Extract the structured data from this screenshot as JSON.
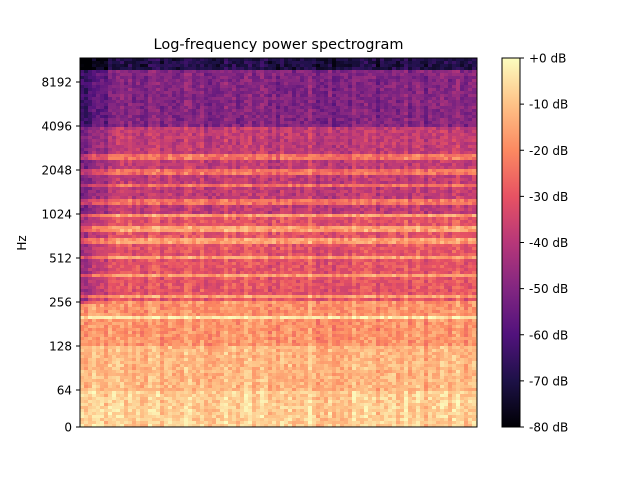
{
  "chart_data": {
    "type": "heatmap",
    "title": "Log-frequency power spectrogram",
    "xlabel": "",
    "ylabel": "Hz",
    "y_scale": "log2 (symlog near 0)",
    "y_ticks": [
      "0",
      "64",
      "128",
      "256",
      "512",
      "1024",
      "2048",
      "4096",
      "8192"
    ],
    "y_tick_values": [
      0,
      64,
      128,
      256,
      512,
      1024,
      2048,
      4096,
      8192
    ],
    "ylim": [
      0,
      11025
    ],
    "x_ticks": [],
    "colorbar": {
      "colormap": "magma",
      "ticks": [
        "+0 dB",
        "-10 dB",
        "-20 dB",
        "-30 dB",
        "-40 dB",
        "-50 dB",
        "-60 dB",
        "-70 dB",
        "-80 dB"
      ],
      "tick_values": [
        0,
        -10,
        -20,
        -30,
        -40,
        -50,
        -60,
        -70,
        -80
      ],
      "range": [
        -80,
        0
      ]
    },
    "description_of_values": {
      "low_freq_below_128Hz_dB": -8,
      "mid_freq_256_1024Hz_dB": -30,
      "high_freq_above_4096Hz_dB": -50,
      "top_band_dB": -70,
      "harmonic_bands_Hz": [
        200,
        280,
        390,
        520,
        660,
        800,
        1000,
        1250,
        1600,
        2000,
        2500
      ]
    }
  }
}
